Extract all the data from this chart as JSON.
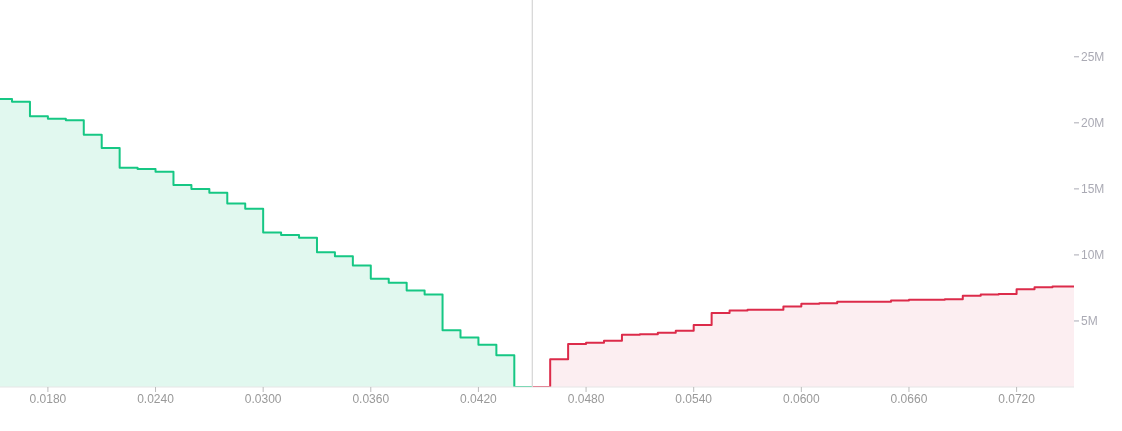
{
  "chart_data": {
    "type": "step",
    "xlim": [
      0.01533,
      0.0752
    ],
    "xticks": [
      {
        "value": 0.018,
        "label": "0.0180"
      },
      {
        "value": 0.024,
        "label": "0.0240"
      },
      {
        "value": 0.03,
        "label": "0.0300"
      },
      {
        "value": 0.036,
        "label": "0.0360"
      },
      {
        "value": 0.042,
        "label": "0.0420"
      },
      {
        "value": 0.048,
        "label": "0.0480"
      },
      {
        "value": 0.054,
        "label": "0.0540"
      },
      {
        "value": 0.06,
        "label": "0.0600"
      },
      {
        "value": 0.066,
        "label": "0.0660"
      },
      {
        "value": 0.072,
        "label": "0.0720"
      }
    ],
    "ylim": [
      0,
      29.3
    ],
    "yticks": [
      {
        "value": 5,
        "label": "5M"
      },
      {
        "value": 10,
        "label": "10M"
      },
      {
        "value": 15,
        "label": "15M"
      },
      {
        "value": 20,
        "label": "20M"
      },
      {
        "value": 25,
        "label": "25M"
      }
    ],
    "grid": false,
    "legend": false,
    "ref_lines": [
      {
        "axis": "x",
        "value": 0.045,
        "color": "#cccccc"
      }
    ],
    "series": [
      {
        "color": "#16c784",
        "x": [
          0.01533,
          0.016,
          0.017,
          0.018,
          0.019,
          0.02,
          0.021,
          0.022,
          0.023,
          0.024,
          0.025,
          0.026,
          0.027,
          0.028,
          0.029,
          0.03,
          0.031,
          0.032,
          0.033,
          0.034,
          0.035,
          0.036,
          0.037,
          0.038,
          0.039,
          0.04,
          0.041,
          0.042,
          0.043,
          0.044,
          0.045
        ],
        "values": [
          21.8,
          21.6,
          20.5,
          20.3,
          20.2,
          19.1,
          18.1,
          16.6,
          16.5,
          16.3,
          15.3,
          15.0,
          14.7,
          13.9,
          13.5,
          11.7,
          11.5,
          11.3,
          10.2,
          9.9,
          9.2,
          8.2,
          7.9,
          7.3,
          7.0,
          4.3,
          3.75,
          3.2,
          2.4,
          0,
          0
        ]
      },
      {
        "color": "#dc2b4a",
        "x": [
          0.045,
          0.046,
          0.047,
          0.048,
          0.049,
          0.05,
          0.051,
          0.052,
          0.053,
          0.054,
          0.055,
          0.056,
          0.057,
          0.058,
          0.059,
          0.06,
          0.061,
          0.062,
          0.063,
          0.064,
          0.065,
          0.066,
          0.067,
          0.068,
          0.069,
          0.07,
          0.071,
          0.072,
          0.073,
          0.074,
          0.0752
        ],
        "values": [
          0,
          2.1,
          3.25,
          3.35,
          3.5,
          3.95,
          4.0,
          4.1,
          4.25,
          4.7,
          5.6,
          5.8,
          5.85,
          5.85,
          6.1,
          6.3,
          6.35,
          6.45,
          6.45,
          6.45,
          6.55,
          6.6,
          6.6,
          6.65,
          6.9,
          7.0,
          7.05,
          7.4,
          7.55,
          7.6,
          7.6
        ]
      }
    ]
  }
}
